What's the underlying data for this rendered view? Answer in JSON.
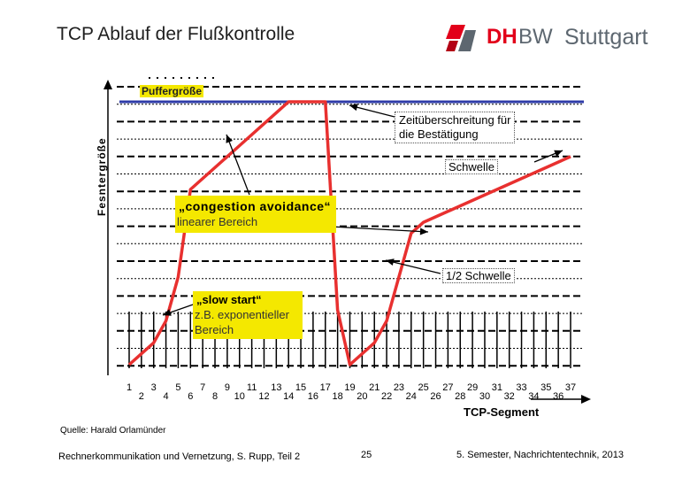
{
  "slide": {
    "title": "TCP Ablauf der Flußkontrolle",
    "logo": {
      "brand_bold": "DH",
      "brand_light": "BW",
      "city": "Stuttgart",
      "accent": "#e2001a",
      "grey": "#5d6770"
    },
    "source": "Quelle: Harald Orlamünder",
    "footer_left": "Rechnerkommunikation und Vernetzung, S. Rupp, Teil 2",
    "page_number": "25",
    "footer_right": "5. Semester, Nachrichtentechnik, 2013"
  },
  "chart_data": {
    "type": "line",
    "ylabel": "Fesntergröße",
    "xlabel": "TCP-Segment",
    "x_ticks": [
      "1",
      "2",
      "3",
      "4",
      "5",
      "6",
      "7",
      "8",
      "9",
      "10",
      "11",
      "12",
      "13",
      "14",
      "15",
      "16",
      "17",
      "18",
      "19",
      "20",
      "21",
      "22",
      "23",
      "24",
      "25",
      "26",
      "27",
      "28",
      "29",
      "30",
      "31",
      "32",
      "33",
      "34",
      "35",
      "36",
      "37"
    ],
    "series": [
      {
        "color": "#e8302f",
        "points": [
          [
            1,
            0
          ],
          [
            2,
            1
          ],
          [
            3,
            2
          ],
          [
            4,
            4
          ],
          [
            5,
            8
          ],
          [
            6,
            16
          ],
          [
            10,
            20
          ],
          [
            14,
            24
          ],
          [
            17,
            24
          ],
          [
            18,
            5
          ],
          [
            19,
            0
          ],
          [
            21,
            2
          ],
          [
            22,
            4
          ],
          [
            23,
            8
          ],
          [
            24,
            12
          ],
          [
            25,
            13
          ],
          [
            37,
            19
          ]
        ]
      }
    ],
    "buffer_level": 24,
    "buffer_color": "#2e3ba8",
    "ylim": [
      0,
      26
    ],
    "grid": true,
    "annotations": {
      "buffer": "Puffergröße",
      "timeout": [
        "Zeitüberschreitung für",
        "die Bestätigung"
      ],
      "threshold": "Schwelle",
      "half_threshold": "1/2 Schwelle",
      "congestion_title": "„congestion avoidance“",
      "congestion_sub": "linearer Bereich",
      "slowstart_title": "„slow start“",
      "slowstart_sub": [
        "z.B. exponentieller",
        "Bereich"
      ]
    }
  }
}
